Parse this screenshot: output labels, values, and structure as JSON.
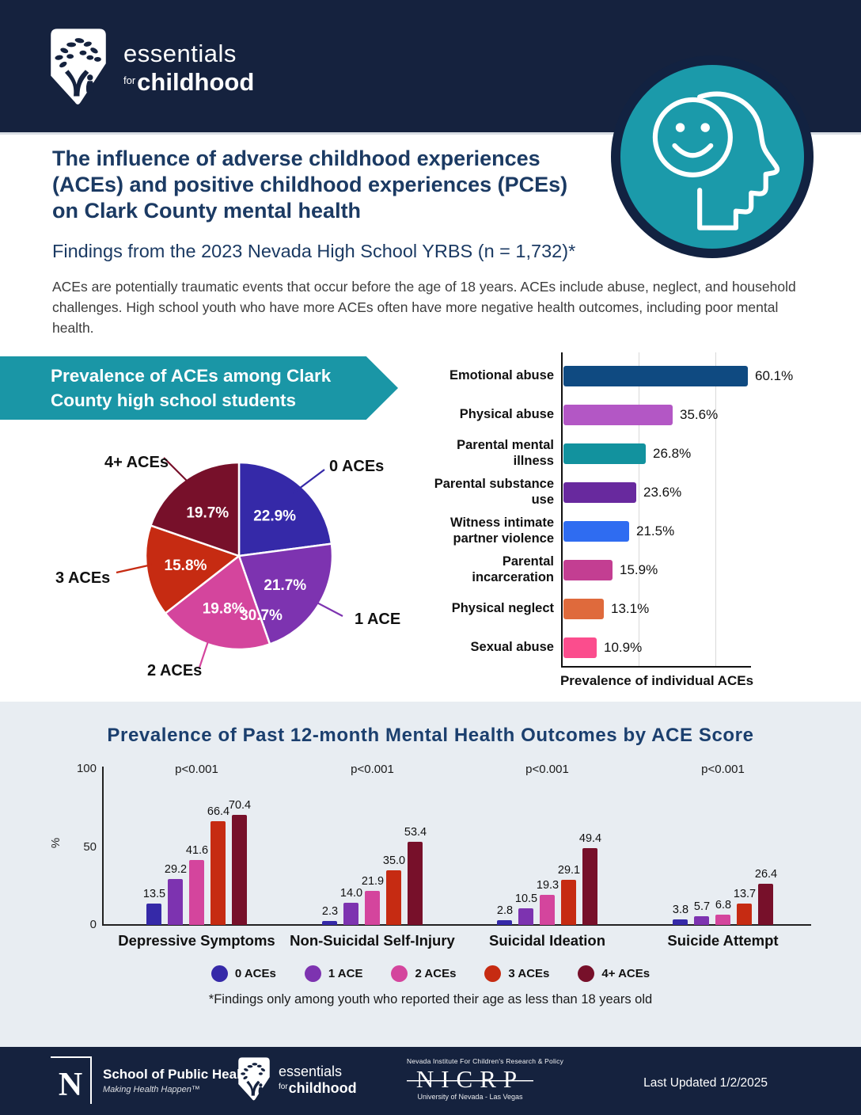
{
  "colors": {
    "navy": "#15223E",
    "title_navy": "#1B3A63",
    "teal": "#1A96A6",
    "section_bg": "#E8EDF2"
  },
  "header": {
    "brand_top": "essentials",
    "brand_for": "for",
    "brand_bottom": "childhood"
  },
  "intro": {
    "title": "The influence of adverse childhood experiences\n(ACEs) and positive childhood experiences (PCEs)\non Clark County mental health",
    "subtitle": "Findings from the 2023 Nevada High School YRBS (n = 1,732)*",
    "body": "ACEs are potentially traumatic events that occur before the age of 18 years. ACEs include abuse, neglect, and household challenges. High school youth who have more ACEs often have more negative health outcomes, including poor mental health."
  },
  "pie_banner": "Prevalence of ACEs among Clark\nCounty high school students",
  "chart_data": [
    {
      "id": "ace-score-pie",
      "type": "pie",
      "title": "Prevalence of ACEs among Clark County high school students",
      "slices": [
        {
          "label": "0 ACEs",
          "value": 22.9,
          "color": "#3529A8"
        },
        {
          "label": "1 ACE",
          "value": 21.7,
          "color": "#7D33B0"
        },
        {
          "label": "2 ACEs",
          "value": 19.8,
          "color": "#D4459D"
        },
        {
          "label": "3 ACEs",
          "value": 15.8,
          "color": "#C62B12"
        },
        {
          "label": "4+ ACEs",
          "value": 19.7,
          "color": "#77102A"
        }
      ],
      "stray_label": "30.7%",
      "start_angle": "top",
      "direction": "clockwise"
    },
    {
      "id": "individual-aces",
      "type": "bar",
      "orientation": "horizontal",
      "xlabel": "Prevalence of individual ACEs",
      "xlim": [
        0,
        100
      ],
      "gridlines_pct": [
        25,
        50
      ],
      "bars": [
        {
          "label": "Emotional abuse",
          "value": 60.1,
          "color": "#0F4A81"
        },
        {
          "label": "Physical abuse",
          "value": 35.6,
          "color": "#B357C5"
        },
        {
          "label": "Parental mental\nillness",
          "value": 26.8,
          "color": "#12929E"
        },
        {
          "label": "Parental substance\nuse",
          "value": 23.6,
          "color": "#68299E"
        },
        {
          "label": "Witness intimate\npartner violence",
          "value": 21.5,
          "color": "#2F6CF1"
        },
        {
          "label": "Parental\nincarceration",
          "value": 15.9,
          "color": "#C33E92"
        },
        {
          "label": "Physical neglect",
          "value": 13.1,
          "color": "#DF6A3C"
        },
        {
          "label": "Sexual abuse",
          "value": 10.9,
          "color": "#FB4D8D"
        }
      ]
    },
    {
      "id": "outcomes-by-ace-score",
      "type": "bar",
      "title": "Prevalence of Past 12-month Mental Health Outcomes by ACE Score",
      "ylabel": "%",
      "ylim": [
        0,
        100
      ],
      "yticks": [
        0,
        50,
        100
      ],
      "significance_label": "p<0.001",
      "legend_position": "bottom",
      "categories": [
        "Depressive Symptoms",
        "Non-Suicidal Self-Injury",
        "Suicidal Ideation",
        "Suicide Attempt"
      ],
      "series": [
        {
          "name": "0 ACEs",
          "color": "#3529A8",
          "values": [
            13.5,
            2.3,
            2.8,
            3.8
          ]
        },
        {
          "name": "1 ACE",
          "color": "#7D33B0",
          "values": [
            29.2,
            14.0,
            10.5,
            5.7
          ]
        },
        {
          "name": "2 ACEs",
          "color": "#D4459D",
          "values": [
            41.6,
            21.9,
            19.3,
            6.8
          ]
        },
        {
          "name": "3 ACEs",
          "color": "#C62B12",
          "values": [
            66.4,
            35.0,
            29.1,
            13.7
          ]
        },
        {
          "name": "4+ ACEs",
          "color": "#77102A",
          "values": [
            70.4,
            53.4,
            49.4,
            26.4
          ]
        }
      ]
    }
  ],
  "footnote": "*Findings only among youth who reported their age as less than 18 years old",
  "footer": {
    "unr": {
      "n": "N",
      "line1": "School of Public Health",
      "line2": "Making Health Happen™"
    },
    "efc": {
      "brand_top": "essentials",
      "brand_for": "for",
      "brand_bottom": "childhood"
    },
    "nicrp": {
      "top": "Nevada Institute For Children's Research & Policy",
      "big": "NICRP",
      "bottom": "University of Nevada - Las Vegas"
    },
    "updated": "Last Updated 1/2/2025"
  }
}
